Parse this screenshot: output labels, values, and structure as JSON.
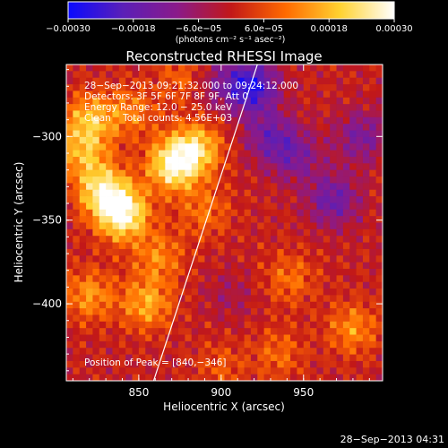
{
  "chart_data": {
    "type": "heatmap",
    "title": "Reconstructed RHESSI Image",
    "xlabel": "Heliocentric X (arcsec)",
    "ylabel": "Heliocentric Y (arcsec)",
    "xlim": [
      806,
      998
    ],
    "ylim": [
      -446,
      -257
    ],
    "x_ticks": [
      850,
      900,
      950
    ],
    "y_ticks": [
      -300,
      -350,
      -400
    ],
    "x_tick_labels": [
      "850",
      "900",
      "950"
    ],
    "y_tick_labels": [
      "−300",
      "−350",
      "−400"
    ],
    "colorbar": {
      "range": [
        -0.0003,
        0.0003
      ],
      "tick_labels": [
        "−0.00030",
        "−0.00018",
        "−6.0e−05",
        "6.0e−05",
        "0.00018",
        "0.00030"
      ],
      "unit_label": "(photons cm⁻² s⁻¹ asec⁻²)",
      "colors": [
        "#0a0aff",
        "#5a1fb8",
        "#8a1a8a",
        "#c21818",
        "#ff6a00",
        "#ffd230",
        "#ffffff"
      ]
    },
    "info_lines": [
      "28−Sep−2013 09:21:32.000 to 09:24:12.000",
      "Detectors: 3F 5F 6F 7F 8F 9F, Att 0",
      "Energy Range: 12.0 − 25.0 keV",
      "Clean    Total counts: 4.56E+03"
    ],
    "peak_label": "Position of Peak = [840,−346]",
    "limb_line": {
      "x": [
        859,
        922
      ],
      "y": [
        -446,
        -257
      ]
    },
    "sources": [
      {
        "x": 840,
        "y": -346,
        "value": 0.0003
      },
      {
        "x": 828,
        "y": -332,
        "value": 0.00022
      },
      {
        "x": 871,
        "y": -317,
        "value": 0.00027
      },
      {
        "x": 885,
        "y": -307,
        "value": 0.0002
      },
      {
        "x": 820,
        "y": -290,
        "value": 0.00017
      },
      {
        "x": 816,
        "y": -310,
        "value": 0.00015
      },
      {
        "x": 820,
        "y": -395,
        "value": 0.00014
      },
      {
        "x": 855,
        "y": -400,
        "value": 0.00016
      },
      {
        "x": 862,
        "y": -372,
        "value": 0.00012
      },
      {
        "x": 845,
        "y": -285,
        "value": 0.00011
      },
      {
        "x": 890,
        "y": -345,
        "value": 0.0001
      },
      {
        "x": 878,
        "y": -265,
        "value": 0.0001
      },
      {
        "x": 895,
        "y": -268,
        "value": -9e-05
      },
      {
        "x": 918,
        "y": -270,
        "value": -0.00026
      },
      {
        "x": 930,
        "y": -300,
        "value": -0.00014
      },
      {
        "x": 945,
        "y": -312,
        "value": -0.00012
      },
      {
        "x": 968,
        "y": -338,
        "value": -0.00016
      },
      {
        "x": 985,
        "y": -300,
        "value": -0.00013
      },
      {
        "x": 942,
        "y": -385,
        "value": 0.0001
      },
      {
        "x": 980,
        "y": -415,
        "value": 0.00013
      },
      {
        "x": 935,
        "y": -430,
        "value": 9e-05
      },
      {
        "x": 905,
        "y": -395,
        "value": -5e-05
      },
      {
        "x": 900,
        "y": -438,
        "value": 7e-05
      }
    ]
  },
  "footer": {
    "date": "28−Sep−2013 04:31"
  }
}
